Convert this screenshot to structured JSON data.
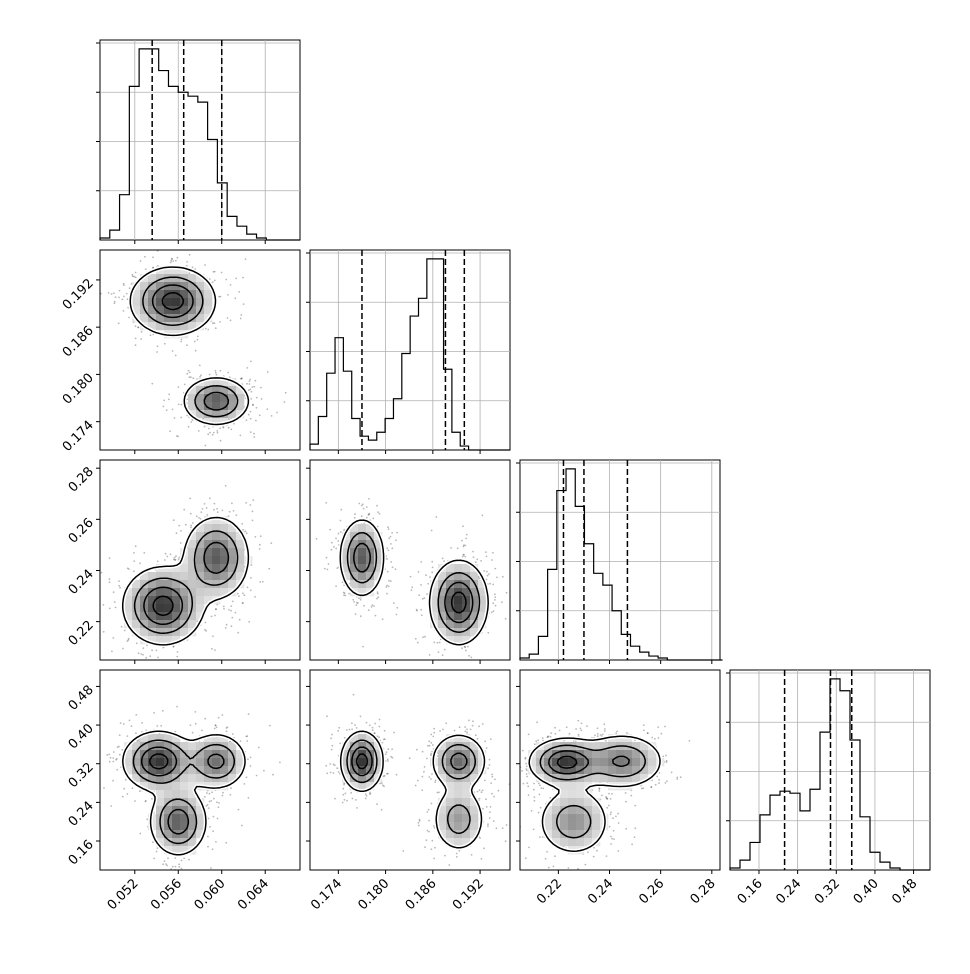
{
  "chart_data": {
    "type": "corner",
    "grid": true,
    "params": [
      {
        "range": [
          0.0488,
          0.0672
        ],
        "ticks": [
          0.052,
          0.056,
          0.06,
          0.064
        ],
        "tick_labels": [
          "0.052",
          "0.056",
          "0.060",
          "0.064"
        ]
      },
      {
        "range": [
          0.1704,
          0.1958
        ],
        "ticks": [
          0.174,
          0.18,
          0.186,
          0.192
        ],
        "tick_labels": [
          "0.174",
          "0.180",
          "0.186",
          "0.192"
        ]
      },
      {
        "range": [
          0.205,
          0.2832
        ],
        "ticks": [
          0.22,
          0.24,
          0.26,
          0.28
        ],
        "tick_labels": [
          "0.22",
          "0.24",
          "0.26",
          "0.28"
        ]
      },
      {
        "range": [
          0.1,
          0.514
        ],
        "ticks": [
          0.16,
          0.24,
          0.32,
          0.4,
          0.48
        ],
        "tick_labels": [
          "0.16",
          "0.24",
          "0.32",
          "0.40",
          "0.48"
        ]
      }
    ],
    "histograms": [
      {
        "param": 0,
        "bin_edges_start": 0.0488,
        "bin_width": 0.0009,
        "counts": [
          1,
          5,
          23,
          78,
          97,
          97,
          86,
          78,
          75,
          73,
          70,
          51,
          29,
          12,
          7,
          3,
          1,
          0,
          0,
          0
        ],
        "quantiles": [
          0.0536,
          0.0565,
          0.06
        ]
      },
      {
        "param": 1,
        "bin_edges_start": 0.1704,
        "bin_width": 0.00106,
        "counts": [
          3,
          17,
          39,
          57,
          40,
          16,
          7,
          5,
          9,
          16,
          26,
          49,
          68,
          77,
          97,
          97,
          41,
          9,
          2,
          0,
          0,
          0,
          0,
          0
        ],
        "quantiles": [
          0.177,
          0.1876,
          0.19
        ]
      },
      {
        "param": 2,
        "bin_edges_start": 0.205,
        "bin_width": 0.0036,
        "counts": [
          1,
          3,
          12,
          46,
          86,
          97,
          78,
          59,
          44,
          38,
          25,
          13,
          7,
          4,
          2,
          1,
          0,
          0,
          0,
          0,
          0,
          0
        ],
        "quantiles": [
          0.222,
          0.23,
          0.247
        ]
      },
      {
        "param": 3,
        "bin_edges_start": 0.1,
        "bin_width": 0.0207,
        "counts": [
          1,
          5,
          14,
          28,
          38,
          40,
          39,
          30,
          41,
          70,
          97,
          91,
          66,
          27,
          9,
          4,
          1,
          0,
          0,
          0
        ],
        "quantiles": [
          0.213,
          0.308,
          0.352
        ]
      }
    ],
    "density_panels": [
      {
        "x_param": 0,
        "y_param": 1,
        "components": [
          {
            "cx": 0.0555,
            "cy": 0.1893,
            "sx": 0.0019,
            "sy": 0.0021,
            "w": 0.55
          },
          {
            "cx": 0.0595,
            "cy": 0.1766,
            "sx": 0.0015,
            "sy": 0.0015,
            "w": 0.45
          }
        ]
      },
      {
        "x_param": 0,
        "y_param": 2,
        "components": [
          {
            "cx": 0.0546,
            "cy": 0.2262,
            "sx": 0.0018,
            "sy": 0.0074,
            "w": 0.55
          },
          {
            "cx": 0.0595,
            "cy": 0.245,
            "sx": 0.0015,
            "sy": 0.008,
            "w": 0.45
          }
        ]
      },
      {
        "x_param": 1,
        "y_param": 2,
        "components": [
          {
            "cx": 0.177,
            "cy": 0.245,
            "sx": 0.0014,
            "sy": 0.0075,
            "w": 0.45
          },
          {
            "cx": 0.1893,
            "cy": 0.2275,
            "sx": 0.0018,
            "sy": 0.008,
            "w": 0.55
          }
        ]
      },
      {
        "x_param": 0,
        "y_param": 3,
        "components": [
          {
            "cx": 0.0542,
            "cy": 0.325,
            "sx": 0.0016,
            "sy": 0.03,
            "w": 0.4
          },
          {
            "cx": 0.0595,
            "cy": 0.325,
            "sx": 0.0014,
            "sy": 0.029,
            "w": 0.28
          },
          {
            "cx": 0.056,
            "cy": 0.2,
            "sx": 0.0013,
            "sy": 0.035,
            "w": 0.32
          }
        ]
      },
      {
        "x_param": 1,
        "y_param": 3,
        "components": [
          {
            "cx": 0.177,
            "cy": 0.325,
            "sx": 0.0013,
            "sy": 0.03,
            "w": 0.45
          },
          {
            "cx": 0.1893,
            "cy": 0.325,
            "sx": 0.0017,
            "sy": 0.028,
            "w": 0.33
          },
          {
            "cx": 0.1893,
            "cy": 0.205,
            "sx": 0.0017,
            "sy": 0.035,
            "w": 0.22
          }
        ]
      },
      {
        "x_param": 2,
        "y_param": 3,
        "components": [
          {
            "cx": 0.223,
            "cy": 0.323,
            "sx": 0.007,
            "sy": 0.024,
            "w": 0.45
          },
          {
            "cx": 0.245,
            "cy": 0.325,
            "sx": 0.008,
            "sy": 0.028,
            "w": 0.3
          },
          {
            "cx": 0.226,
            "cy": 0.2,
            "sx": 0.007,
            "sy": 0.035,
            "w": 0.25
          }
        ]
      }
    ],
    "contour_levels": [
      0.12,
      0.35,
      0.62,
      0.88
    ]
  }
}
